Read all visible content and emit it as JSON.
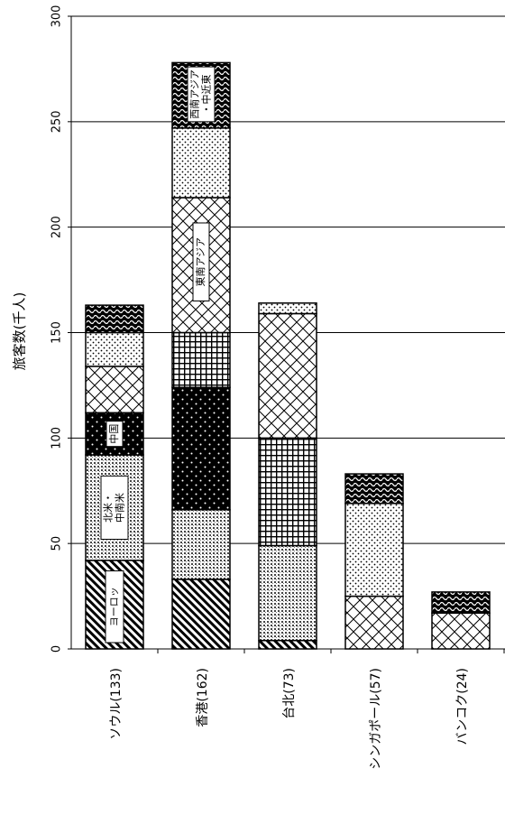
{
  "chart_data": {
    "type": "bar",
    "stacked": true,
    "orientation": "vertical",
    "title": "",
    "xlabel": "",
    "ylabel": "旅客数(千人)",
    "ylim": [
      0,
      300
    ],
    "yticks": [
      0,
      50,
      100,
      150,
      200,
      250,
      300
    ],
    "grid": true,
    "legend": "none",
    "categories": [
      "ソウル(133)",
      "香港(162)",
      "台北(73)",
      "シンガポール(57)",
      "バンコク(24)"
    ],
    "series": [
      {
        "label": "ヨーロッパ",
        "pattern": "diagonal-hatch",
        "values": [
          42,
          33,
          4,
          0,
          0
        ]
      },
      {
        "label": "北米・中南米",
        "pattern": "dense-dots",
        "values": [
          50,
          33,
          45,
          0,
          0
        ]
      },
      {
        "label": "中国",
        "pattern": "black-dotted",
        "values": [
          20,
          58,
          0,
          0,
          0
        ]
      },
      {
        "label": "",
        "pattern": "grid",
        "values": [
          0,
          26,
          51,
          0,
          0
        ]
      },
      {
        "label": "東南アジア",
        "pattern": "crosshatch",
        "values": [
          22,
          64,
          59,
          25,
          17
        ]
      },
      {
        "label": "",
        "pattern": "light-dots",
        "values": [
          16,
          33,
          5,
          44,
          0
        ]
      },
      {
        "label": "西南アジア・中近東",
        "pattern": "waves",
        "values": [
          13,
          31,
          0,
          14,
          10
        ]
      }
    ],
    "segment_labels": {
      "europe": "ヨーロッ",
      "america": [
        "北米・",
        "中南米"
      ],
      "china": "中国",
      "se_asia": "東南アジア",
      "sw_asia": [
        "西南アジア",
        "・中近東"
      ]
    }
  }
}
